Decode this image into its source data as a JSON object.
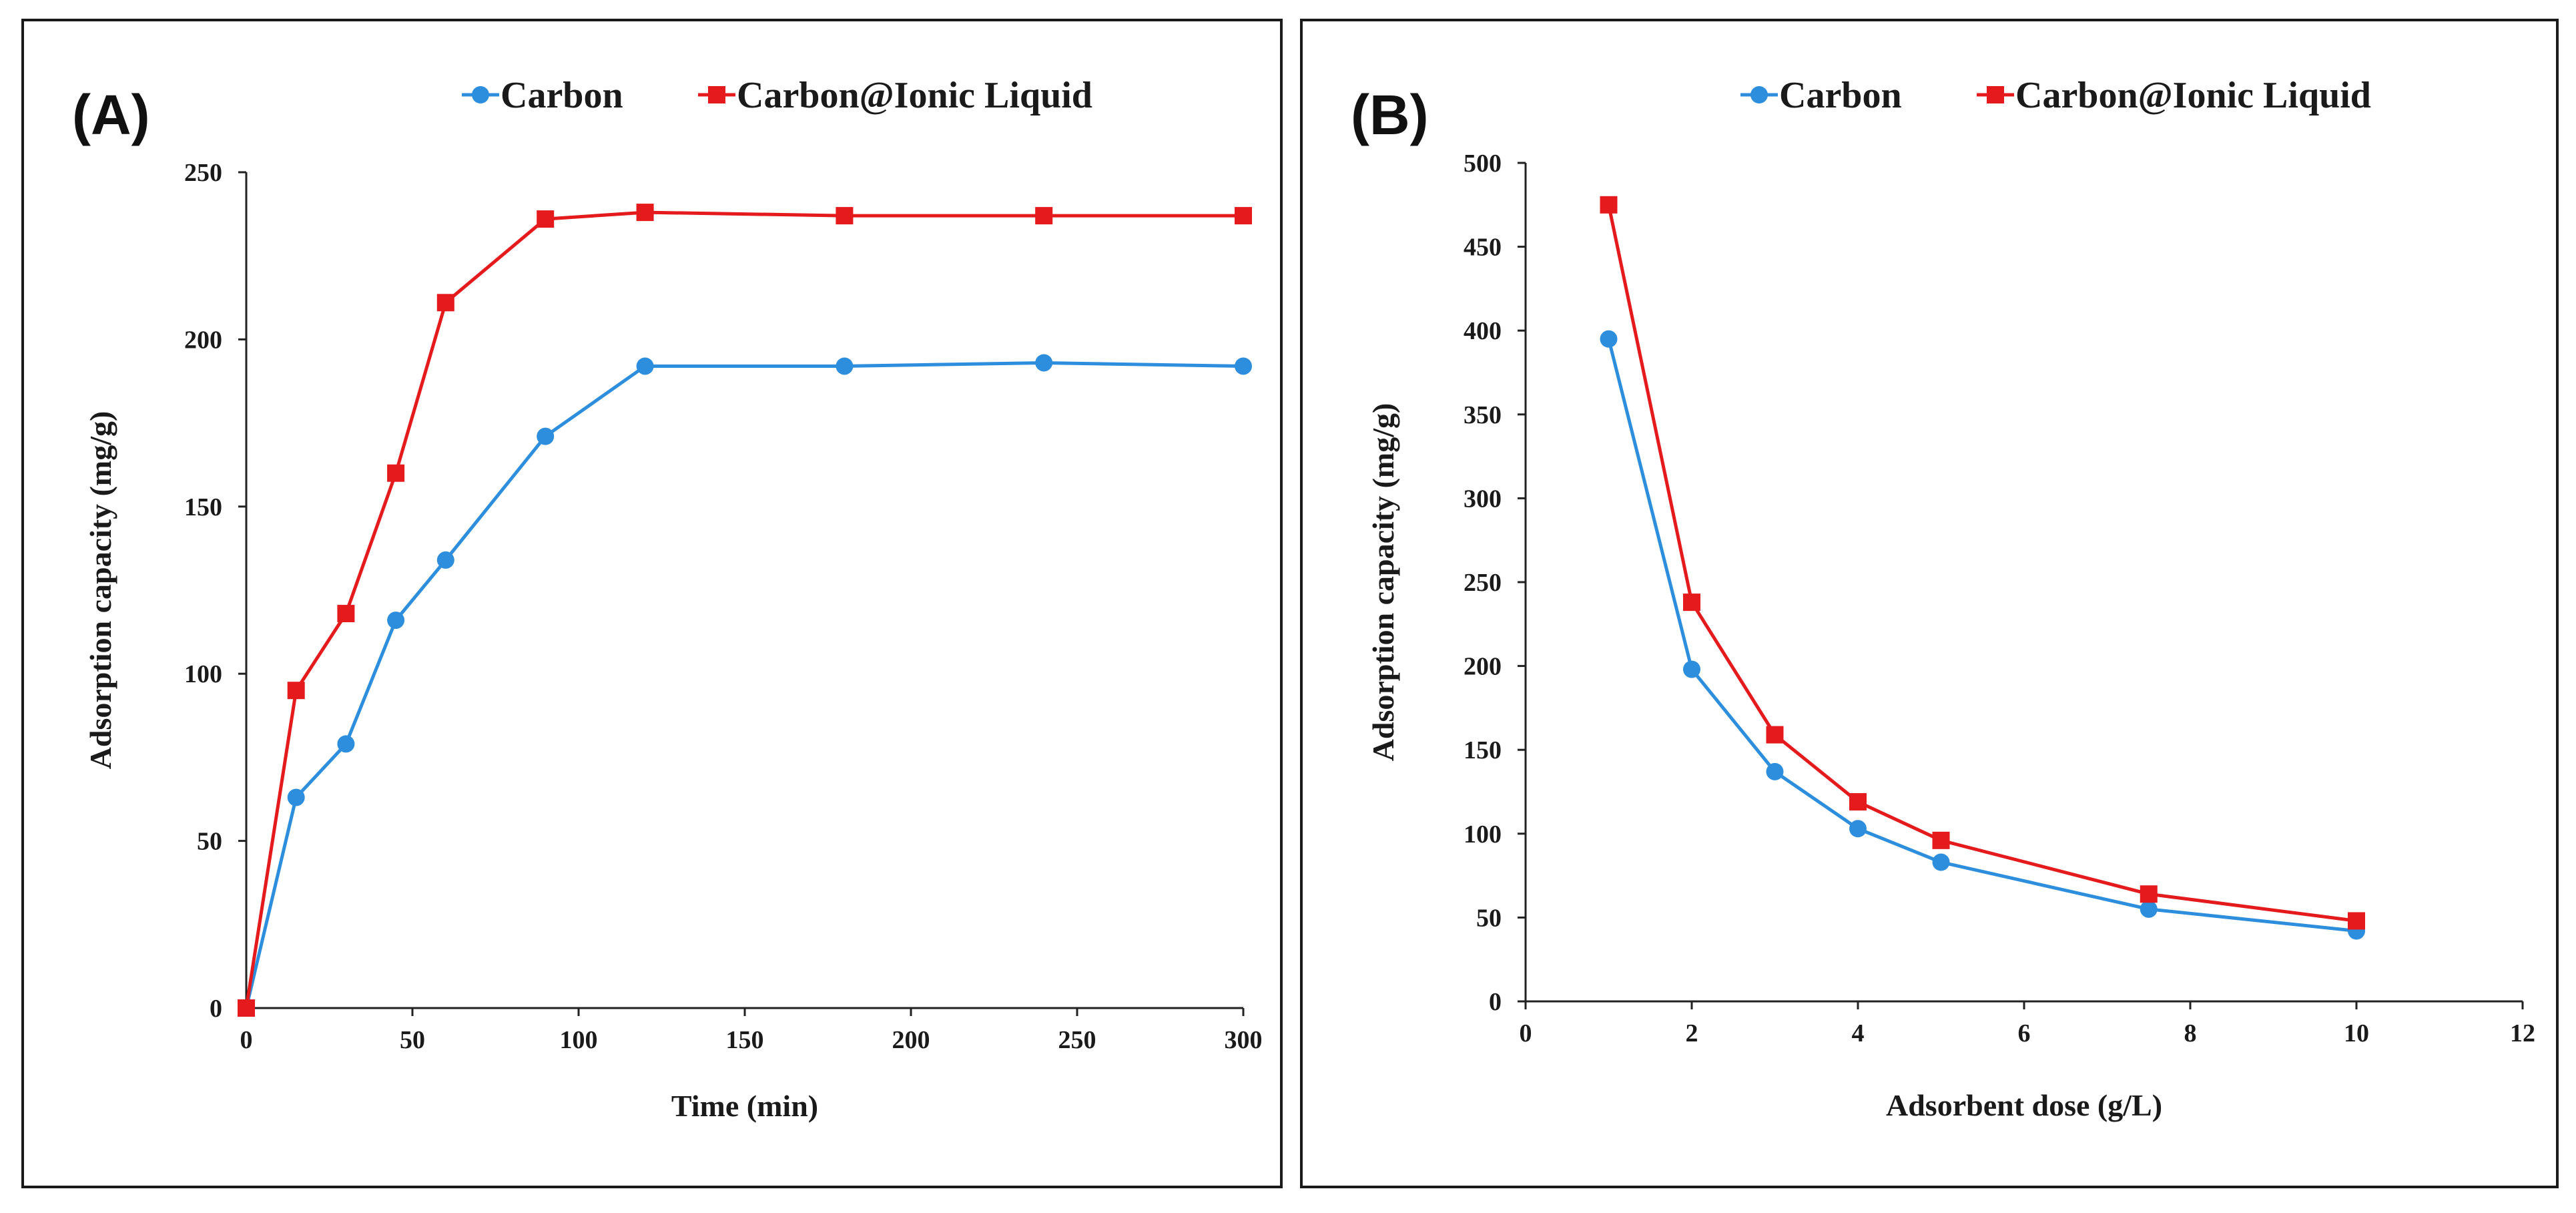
{
  "panels": [
    {
      "label": "(A)",
      "chart_data": {
        "type": "line",
        "xlabel": "Time (min)",
        "ylabel": "Adsorption capacity (mg/g)",
        "xlim": [
          0,
          300
        ],
        "ylim": [
          0,
          250
        ],
        "xticks": [
          0,
          50,
          100,
          150,
          200,
          250,
          300
        ],
        "yticks": [
          0,
          50,
          100,
          150,
          200,
          250
        ],
        "grid": false,
        "legend_position": "top",
        "series": [
          {
            "name": "Carbon",
            "color": "#2e8ede",
            "marker": "circle",
            "x": [
              0,
              15,
              30,
              45,
              60,
              90,
              120,
              180,
              240,
              300
            ],
            "y": [
              0,
              63,
              79,
              116,
              134,
              171,
              192,
              192,
              193,
              192
            ]
          },
          {
            "name": "Carbon@Ionic Liquid",
            "color": "#e41a1c",
            "marker": "square",
            "x": [
              0,
              15,
              30,
              45,
              60,
              90,
              120,
              180,
              240,
              300
            ],
            "y": [
              0,
              95,
              118,
              160,
              211,
              236,
              238,
              237,
              237,
              237
            ]
          }
        ]
      }
    },
    {
      "label": "(B)",
      "chart_data": {
        "type": "line",
        "xlabel": "Adsorbent  dose (g/L)",
        "ylabel": "Adsorption capacity (mg/g)",
        "xlim": [
          0,
          12
        ],
        "ylim": [
          0,
          500
        ],
        "xticks": [
          0,
          2,
          4,
          6,
          8,
          10,
          12
        ],
        "yticks": [
          0,
          50,
          100,
          150,
          200,
          250,
          300,
          350,
          400,
          450,
          500
        ],
        "grid": false,
        "legend_position": "top",
        "series": [
          {
            "name": "Carbon",
            "color": "#2e8ede",
            "marker": "circle",
            "x": [
              1,
              2,
              3,
              4,
              5,
              7.5,
              10
            ],
            "y": [
              395,
              198,
              137,
              103,
              83,
              55,
              42
            ]
          },
          {
            "name": "Carbon@Ionic Liquid",
            "color": "#e41a1c",
            "marker": "square",
            "x": [
              1,
              2,
              3,
              4,
              5,
              7.5,
              10
            ],
            "y": [
              475,
              238,
              159,
              119,
              96,
              64,
              48
            ]
          }
        ]
      }
    }
  ]
}
